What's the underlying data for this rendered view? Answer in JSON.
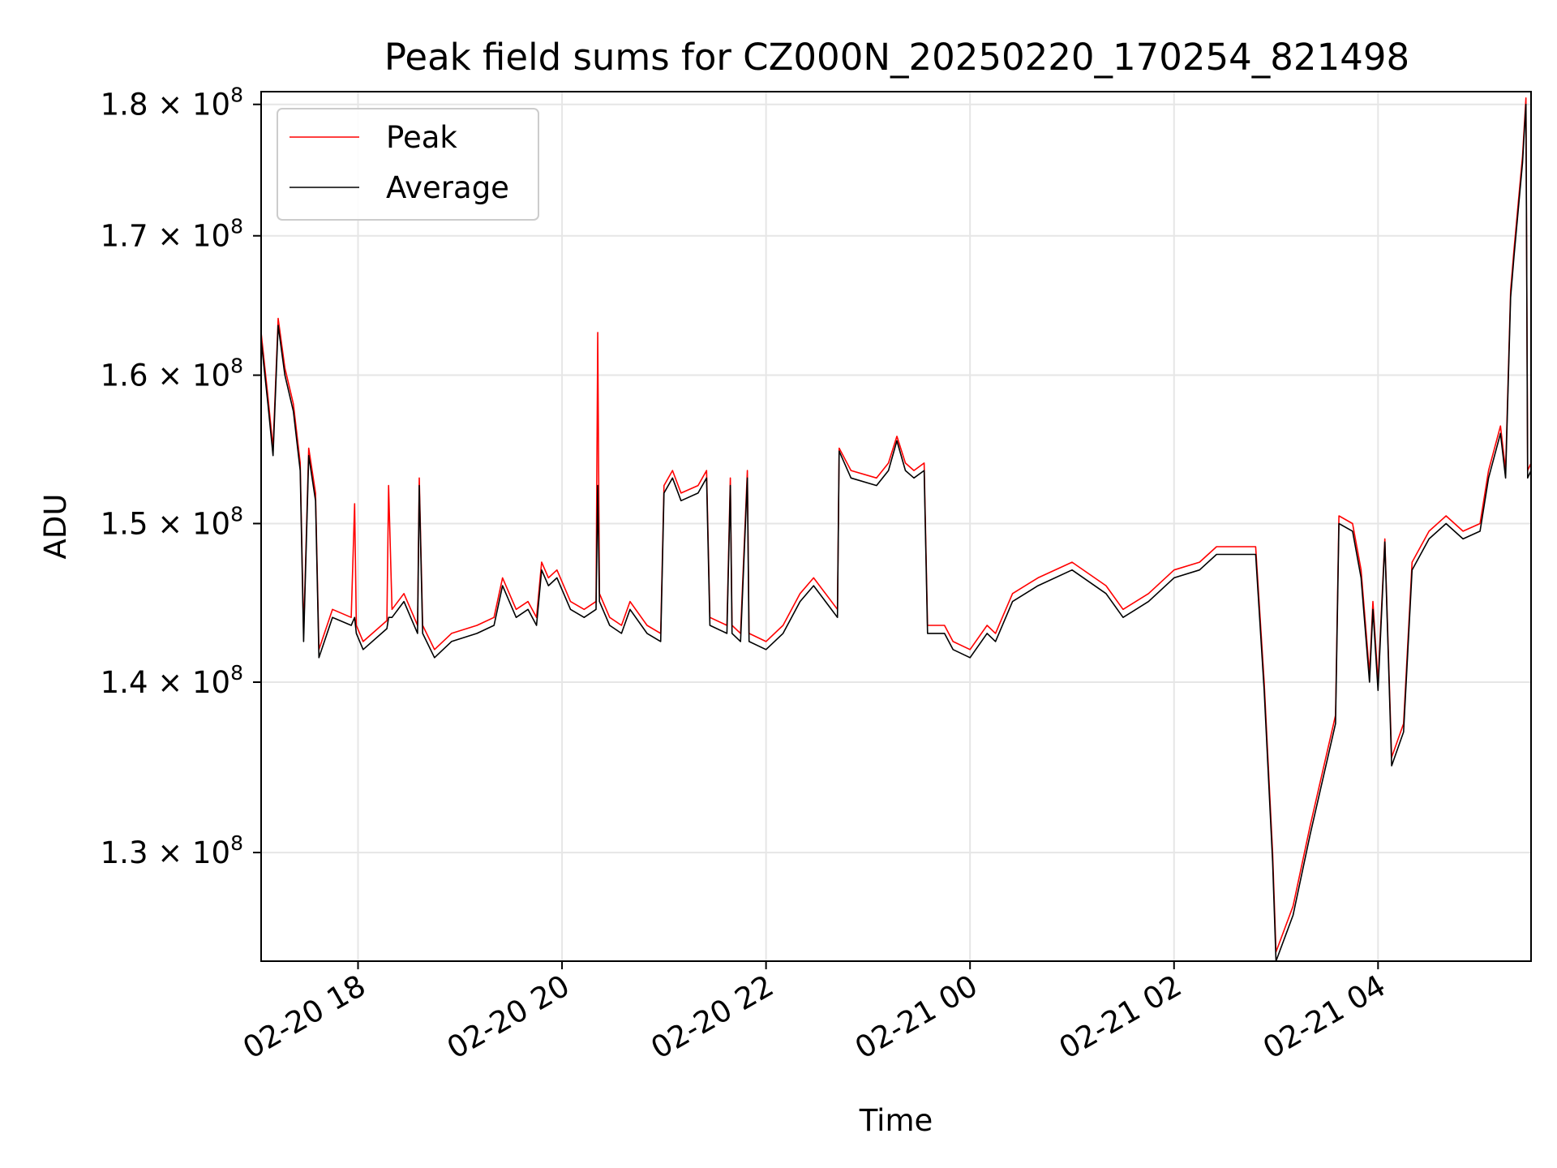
{
  "chart_data": {
    "type": "line",
    "title": "Peak field sums for CZ000N_20250220_170254_821498",
    "xlabel": "Time",
    "ylabel": "ADU",
    "x_axis": {
      "kind": "datetime",
      "range": [
        "2025-02-20T17:03",
        "2025-02-21T05:30"
      ],
      "tick_values": [
        "2025-02-20T18:00",
        "2025-02-20T20:00",
        "2025-02-20T22:00",
        "2025-02-21T00:00",
        "2025-02-21T02:00",
        "2025-02-21T04:00"
      ],
      "tick_labels": [
        "02-20 18",
        "02-20 20",
        "02-20 22",
        "02-21 00",
        "02-21 02",
        "02-21 04"
      ],
      "tick_rotation_deg": 30
    },
    "y_axis": {
      "scale": "log",
      "range": [
        124000000,
        181000000
      ],
      "tick_values": [
        130000000,
        140000000,
        150000000,
        160000000,
        170000000,
        180000000
      ],
      "tick_mantissas": [
        "1.3",
        "1.4",
        "1.5",
        "1.6",
        "1.7",
        "1.8"
      ],
      "tick_exponent": "8"
    },
    "grid": true,
    "legend": {
      "position": "top-left",
      "entries": [
        "Peak",
        "Average"
      ]
    },
    "series": [
      {
        "name": "Peak",
        "color": "#ff0000",
        "points": [
          [
            "2025-02-20T17:03",
            163000000
          ],
          [
            "2025-02-20T17:07",
            158500000
          ],
          [
            "2025-02-20T17:10",
            155000000
          ],
          [
            "2025-02-20T17:13",
            164000000
          ],
          [
            "2025-02-20T17:17",
            160500000
          ],
          [
            "2025-02-20T17:22",
            158000000
          ],
          [
            "2025-02-20T17:26",
            154000000
          ],
          [
            "2025-02-20T17:28",
            143000000
          ],
          [
            "2025-02-20T17:31",
            155000000
          ],
          [
            "2025-02-20T17:35",
            152000000
          ],
          [
            "2025-02-20T17:37",
            142000000
          ],
          [
            "2025-02-20T17:45",
            144500000
          ],
          [
            "2025-02-20T17:56",
            144000000
          ],
          [
            "2025-02-20T17:58",
            151300000
          ],
          [
            "2025-02-20T17:59",
            143500000
          ],
          [
            "2025-02-20T18:03",
            142500000
          ],
          [
            "2025-02-20T18:17",
            143800000
          ],
          [
            "2025-02-20T18:18",
            152500000
          ],
          [
            "2025-02-20T18:20",
            144500000
          ],
          [
            "2025-02-20T18:27",
            145500000
          ],
          [
            "2025-02-20T18:35",
            143500000
          ],
          [
            "2025-02-20T18:36",
            153000000
          ],
          [
            "2025-02-20T18:38",
            143500000
          ],
          [
            "2025-02-20T18:45",
            142000000
          ],
          [
            "2025-02-20T18:55",
            143000000
          ],
          [
            "2025-02-20T19:10",
            143500000
          ],
          [
            "2025-02-20T19:20",
            144000000
          ],
          [
            "2025-02-20T19:25",
            146500000
          ],
          [
            "2025-02-20T19:33",
            144500000
          ],
          [
            "2025-02-20T19:40",
            145000000
          ],
          [
            "2025-02-20T19:45",
            144000000
          ],
          [
            "2025-02-20T19:48",
            147500000
          ],
          [
            "2025-02-20T19:52",
            146500000
          ],
          [
            "2025-02-20T19:57",
            147000000
          ],
          [
            "2025-02-20T20:05",
            145000000
          ],
          [
            "2025-02-20T20:13",
            144500000
          ],
          [
            "2025-02-20T20:20",
            145000000
          ],
          [
            "2025-02-20T20:21",
            163000000
          ],
          [
            "2025-02-20T20:22",
            145500000
          ],
          [
            "2025-02-20T20:28",
            144000000
          ],
          [
            "2025-02-20T20:35",
            143500000
          ],
          [
            "2025-02-20T20:40",
            145000000
          ],
          [
            "2025-02-20T20:50",
            143500000
          ],
          [
            "2025-02-20T20:58",
            143000000
          ],
          [
            "2025-02-20T21:00",
            152500000
          ],
          [
            "2025-02-20T21:05",
            153500000
          ],
          [
            "2025-02-20T21:10",
            152000000
          ],
          [
            "2025-02-20T21:20",
            152500000
          ],
          [
            "2025-02-20T21:25",
            153500000
          ],
          [
            "2025-02-20T21:27",
            144000000
          ],
          [
            "2025-02-20T21:37",
            143500000
          ],
          [
            "2025-02-20T21:39",
            153000000
          ],
          [
            "2025-02-20T21:40",
            143500000
          ],
          [
            "2025-02-20T21:45",
            143000000
          ],
          [
            "2025-02-20T21:49",
            153500000
          ],
          [
            "2025-02-20T21:50",
            143000000
          ],
          [
            "2025-02-20T22:00",
            142500000
          ],
          [
            "2025-02-20T22:10",
            143500000
          ],
          [
            "2025-02-20T22:20",
            145500000
          ],
          [
            "2025-02-20T22:28",
            146500000
          ],
          [
            "2025-02-20T22:42",
            144500000
          ],
          [
            "2025-02-20T22:43",
            155000000
          ],
          [
            "2025-02-20T22:50",
            153500000
          ],
          [
            "2025-02-20T23:05",
            153000000
          ],
          [
            "2025-02-20T23:12",
            154000000
          ],
          [
            "2025-02-20T23:17",
            155800000
          ],
          [
            "2025-02-20T23:22",
            154000000
          ],
          [
            "2025-02-20T23:27",
            153500000
          ],
          [
            "2025-02-20T23:33",
            154000000
          ],
          [
            "2025-02-20T23:35",
            143500000
          ],
          [
            "2025-02-20T23:45",
            143500000
          ],
          [
            "2025-02-20T23:50",
            142500000
          ],
          [
            "2025-02-21T00:00",
            142000000
          ],
          [
            "2025-02-21T00:10",
            143500000
          ],
          [
            "2025-02-21T00:15",
            143000000
          ],
          [
            "2025-02-21T00:25",
            145500000
          ],
          [
            "2025-02-21T00:40",
            146500000
          ],
          [
            "2025-02-21T01:00",
            147500000
          ],
          [
            "2025-02-21T01:20",
            146000000
          ],
          [
            "2025-02-21T01:30",
            144500000
          ],
          [
            "2025-02-21T01:45",
            145500000
          ],
          [
            "2025-02-21T02:00",
            147000000
          ],
          [
            "2025-02-21T02:15",
            147500000
          ],
          [
            "2025-02-21T02:25",
            148500000
          ],
          [
            "2025-02-21T02:48",
            148500000
          ],
          [
            "2025-02-21T02:53",
            140000000
          ],
          [
            "2025-02-21T02:58",
            130000000
          ],
          [
            "2025-02-21T03:00",
            124500000
          ],
          [
            "2025-02-21T03:10",
            127000000
          ],
          [
            "2025-02-21T03:20",
            131500000
          ],
          [
            "2025-02-21T03:35",
            138000000
          ],
          [
            "2025-02-21T03:37",
            150500000
          ],
          [
            "2025-02-21T03:45",
            150000000
          ],
          [
            "2025-02-21T03:50",
            147000000
          ],
          [
            "2025-02-21T03:55",
            140500000
          ],
          [
            "2025-02-21T03:57",
            145000000
          ],
          [
            "2025-02-21T04:00",
            140000000
          ],
          [
            "2025-02-21T04:04",
            149000000
          ],
          [
            "2025-02-21T04:08",
            135500000
          ],
          [
            "2025-02-21T04:15",
            137500000
          ],
          [
            "2025-02-21T04:20",
            147500000
          ],
          [
            "2025-02-21T04:30",
            149500000
          ],
          [
            "2025-02-21T04:40",
            150500000
          ],
          [
            "2025-02-21T04:50",
            149500000
          ],
          [
            "2025-02-21T05:00",
            150000000
          ],
          [
            "2025-02-21T05:05",
            153500000
          ],
          [
            "2025-02-21T05:12",
            156500000
          ],
          [
            "2025-02-21T05:15",
            153500000
          ],
          [
            "2025-02-21T05:18",
            166000000
          ],
          [
            "2025-02-21T05:20",
            169000000
          ],
          [
            "2025-02-21T05:25",
            176000000
          ],
          [
            "2025-02-21T05:27",
            180500000
          ],
          [
            "2025-02-21T05:28",
            153500000
          ],
          [
            "2025-02-21T05:30",
            154000000
          ]
        ]
      },
      {
        "name": "Average",
        "color": "#000000",
        "points": [
          [
            "2025-02-20T17:03",
            162500000
          ],
          [
            "2025-02-20T17:07",
            158000000
          ],
          [
            "2025-02-20T17:10",
            154500000
          ],
          [
            "2025-02-20T17:13",
            163500000
          ],
          [
            "2025-02-20T17:17",
            160000000
          ],
          [
            "2025-02-20T17:22",
            157500000
          ],
          [
            "2025-02-20T17:26",
            153500000
          ],
          [
            "2025-02-20T17:28",
            142500000
          ],
          [
            "2025-02-20T17:31",
            154500000
          ],
          [
            "2025-02-20T17:35",
            151500000
          ],
          [
            "2025-02-20T17:37",
            141500000
          ],
          [
            "2025-02-20T17:45",
            144000000
          ],
          [
            "2025-02-20T17:56",
            143500000
          ],
          [
            "2025-02-20T17:58",
            144000000
          ],
          [
            "2025-02-20T17:59",
            143000000
          ],
          [
            "2025-02-20T18:03",
            142000000
          ],
          [
            "2025-02-20T18:17",
            143300000
          ],
          [
            "2025-02-20T18:18",
            144000000
          ],
          [
            "2025-02-20T18:20",
            144000000
          ],
          [
            "2025-02-20T18:27",
            145000000
          ],
          [
            "2025-02-20T18:35",
            143000000
          ],
          [
            "2025-02-20T18:36",
            152500000
          ],
          [
            "2025-02-20T18:38",
            143000000
          ],
          [
            "2025-02-20T18:45",
            141500000
          ],
          [
            "2025-02-20T18:55",
            142500000
          ],
          [
            "2025-02-20T19:10",
            143000000
          ],
          [
            "2025-02-20T19:20",
            143500000
          ],
          [
            "2025-02-20T19:25",
            146000000
          ],
          [
            "2025-02-20T19:33",
            144000000
          ],
          [
            "2025-02-20T19:40",
            144500000
          ],
          [
            "2025-02-20T19:45",
            143500000
          ],
          [
            "2025-02-20T19:48",
            147000000
          ],
          [
            "2025-02-20T19:52",
            146000000
          ],
          [
            "2025-02-20T19:57",
            146500000
          ],
          [
            "2025-02-20T20:05",
            144500000
          ],
          [
            "2025-02-20T20:13",
            144000000
          ],
          [
            "2025-02-20T20:20",
            144500000
          ],
          [
            "2025-02-20T20:21",
            152500000
          ],
          [
            "2025-02-20T20:22",
            145000000
          ],
          [
            "2025-02-20T20:28",
            143500000
          ],
          [
            "2025-02-20T20:35",
            143000000
          ],
          [
            "2025-02-20T20:40",
            144500000
          ],
          [
            "2025-02-20T20:50",
            143000000
          ],
          [
            "2025-02-20T20:58",
            142500000
          ],
          [
            "2025-02-20T21:00",
            152000000
          ],
          [
            "2025-02-20T21:05",
            153000000
          ],
          [
            "2025-02-20T21:10",
            151500000
          ],
          [
            "2025-02-20T21:20",
            152000000
          ],
          [
            "2025-02-20T21:25",
            153000000
          ],
          [
            "2025-02-20T21:27",
            143500000
          ],
          [
            "2025-02-20T21:37",
            143000000
          ],
          [
            "2025-02-20T21:39",
            152500000
          ],
          [
            "2025-02-20T21:40",
            143000000
          ],
          [
            "2025-02-20T21:45",
            142500000
          ],
          [
            "2025-02-20T21:49",
            153000000
          ],
          [
            "2025-02-20T21:50",
            142500000
          ],
          [
            "2025-02-20T22:00",
            142000000
          ],
          [
            "2025-02-20T22:10",
            143000000
          ],
          [
            "2025-02-20T22:20",
            145000000
          ],
          [
            "2025-02-20T22:28",
            146000000
          ],
          [
            "2025-02-20T22:42",
            144000000
          ],
          [
            "2025-02-20T22:43",
            154800000
          ],
          [
            "2025-02-20T22:50",
            153000000
          ],
          [
            "2025-02-20T23:05",
            152500000
          ],
          [
            "2025-02-20T23:12",
            153500000
          ],
          [
            "2025-02-20T23:17",
            155500000
          ],
          [
            "2025-02-20T23:22",
            153500000
          ],
          [
            "2025-02-20T23:27",
            153000000
          ],
          [
            "2025-02-20T23:33",
            153500000
          ],
          [
            "2025-02-20T23:35",
            143000000
          ],
          [
            "2025-02-20T23:45",
            143000000
          ],
          [
            "2025-02-20T23:50",
            142000000
          ],
          [
            "2025-02-21T00:00",
            141500000
          ],
          [
            "2025-02-21T00:10",
            143000000
          ],
          [
            "2025-02-21T00:15",
            142500000
          ],
          [
            "2025-02-21T00:25",
            145000000
          ],
          [
            "2025-02-21T00:40",
            146000000
          ],
          [
            "2025-02-21T01:00",
            147000000
          ],
          [
            "2025-02-21T01:20",
            145500000
          ],
          [
            "2025-02-21T01:30",
            144000000
          ],
          [
            "2025-02-21T01:45",
            145000000
          ],
          [
            "2025-02-21T02:00",
            146500000
          ],
          [
            "2025-02-21T02:15",
            147000000
          ],
          [
            "2025-02-21T02:25",
            148000000
          ],
          [
            "2025-02-21T02:48",
            148000000
          ],
          [
            "2025-02-21T02:53",
            139500000
          ],
          [
            "2025-02-21T02:58",
            129500000
          ],
          [
            "2025-02-21T03:00",
            124000000
          ],
          [
            "2025-02-21T03:10",
            126500000
          ],
          [
            "2025-02-21T03:20",
            131000000
          ],
          [
            "2025-02-21T03:35",
            137500000
          ],
          [
            "2025-02-21T03:37",
            150000000
          ],
          [
            "2025-02-21T03:45",
            149500000
          ],
          [
            "2025-02-21T03:50",
            146500000
          ],
          [
            "2025-02-21T03:55",
            140000000
          ],
          [
            "2025-02-21T03:57",
            144500000
          ],
          [
            "2025-02-21T04:00",
            139500000
          ],
          [
            "2025-02-21T04:04",
            148800000
          ],
          [
            "2025-02-21T04:08",
            135000000
          ],
          [
            "2025-02-21T04:15",
            137000000
          ],
          [
            "2025-02-21T04:20",
            147000000
          ],
          [
            "2025-02-21T04:30",
            149000000
          ],
          [
            "2025-02-21T04:40",
            150000000
          ],
          [
            "2025-02-21T04:50",
            149000000
          ],
          [
            "2025-02-21T05:00",
            149500000
          ],
          [
            "2025-02-21T05:05",
            153000000
          ],
          [
            "2025-02-21T05:12",
            156000000
          ],
          [
            "2025-02-21T05:15",
            153000000
          ],
          [
            "2025-02-21T05:18",
            165500000
          ],
          [
            "2025-02-21T05:20",
            168500000
          ],
          [
            "2025-02-21T05:25",
            175500000
          ],
          [
            "2025-02-21T05:27",
            180000000
          ],
          [
            "2025-02-21T05:28",
            153000000
          ],
          [
            "2025-02-21T05:30",
            153500000
          ]
        ]
      }
    ]
  }
}
